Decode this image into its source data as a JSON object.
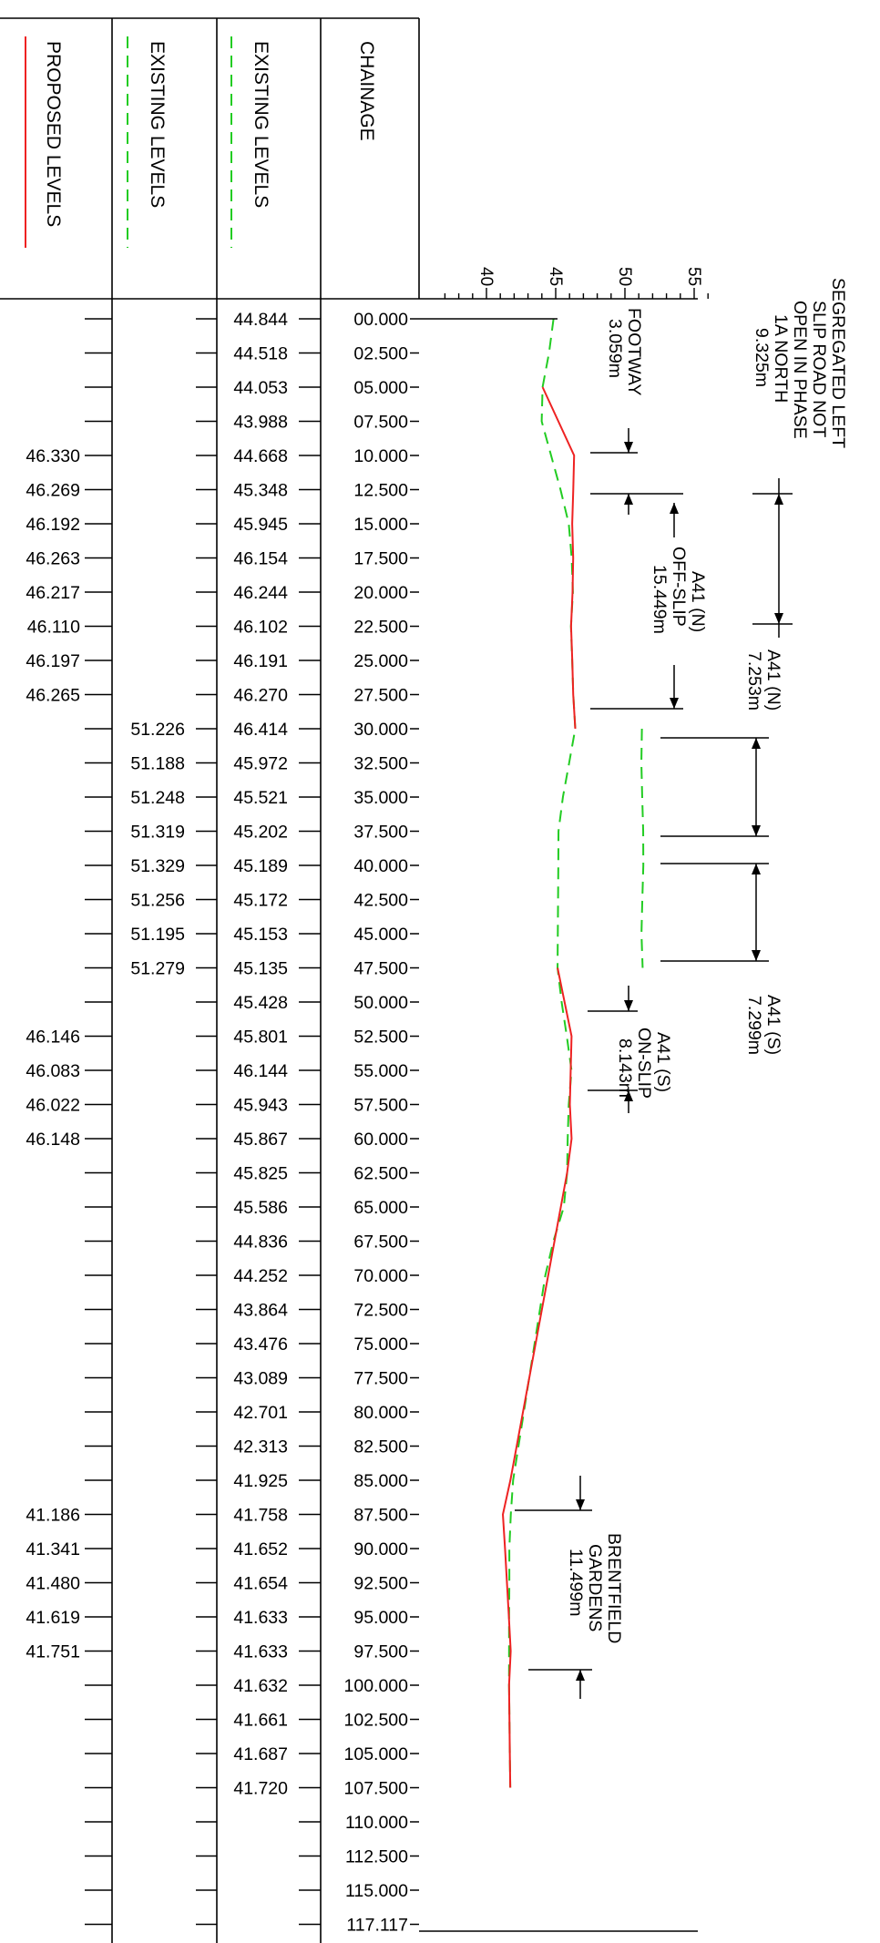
{
  "headers": {
    "proposed": "PROPOSED LEVELS",
    "existing_1": "EXISTING LEVELS",
    "existing_2": "EXISTING LEVELS",
    "chainage": "CHAINAGE"
  },
  "level_scale": {
    "ticks": [
      "40",
      "45",
      "50",
      "55"
    ],
    "min": 36,
    "max": 56
  },
  "rows": [
    {
      "chainage": "00.000",
      "existing_2": "44.844",
      "existing_1": "",
      "proposed": ""
    },
    {
      "chainage": "02.500",
      "existing_2": "44.518",
      "existing_1": "",
      "proposed": ""
    },
    {
      "chainage": "05.000",
      "existing_2": "44.053",
      "existing_1": "",
      "proposed": ""
    },
    {
      "chainage": "07.500",
      "existing_2": "43.988",
      "existing_1": "",
      "proposed": ""
    },
    {
      "chainage": "10.000",
      "existing_2": "44.668",
      "existing_1": "",
      "proposed": "46.330"
    },
    {
      "chainage": "12.500",
      "existing_2": "45.348",
      "existing_1": "",
      "proposed": "46.269"
    },
    {
      "chainage": "15.000",
      "existing_2": "45.945",
      "existing_1": "",
      "proposed": "46.192"
    },
    {
      "chainage": "17.500",
      "existing_2": "46.154",
      "existing_1": "",
      "proposed": "46.263"
    },
    {
      "chainage": "20.000",
      "existing_2": "46.244",
      "existing_1": "",
      "proposed": "46.217"
    },
    {
      "chainage": "22.500",
      "existing_2": "46.102",
      "existing_1": "",
      "proposed": "46.110"
    },
    {
      "chainage": "25.000",
      "existing_2": "46.191",
      "existing_1": "",
      "proposed": "46.197"
    },
    {
      "chainage": "27.500",
      "existing_2": "46.270",
      "existing_1": "",
      "proposed": "46.265"
    },
    {
      "chainage": "30.000",
      "existing_2": "46.414",
      "existing_1": "51.226",
      "proposed": ""
    },
    {
      "chainage": "32.500",
      "existing_2": "45.972",
      "existing_1": "51.188",
      "proposed": ""
    },
    {
      "chainage": "35.000",
      "existing_2": "45.521",
      "existing_1": "51.248",
      "proposed": ""
    },
    {
      "chainage": "37.500",
      "existing_2": "45.202",
      "existing_1": "51.319",
      "proposed": ""
    },
    {
      "chainage": "40.000",
      "existing_2": "45.189",
      "existing_1": "51.329",
      "proposed": ""
    },
    {
      "chainage": "42.500",
      "existing_2": "45.172",
      "existing_1": "51.256",
      "proposed": ""
    },
    {
      "chainage": "45.000",
      "existing_2": "45.153",
      "existing_1": "51.195",
      "proposed": ""
    },
    {
      "chainage": "47.500",
      "existing_2": "45.135",
      "existing_1": "51.279",
      "proposed": ""
    },
    {
      "chainage": "50.000",
      "existing_2": "45.428",
      "existing_1": "",
      "proposed": ""
    },
    {
      "chainage": "52.500",
      "existing_2": "45.801",
      "existing_1": "",
      "proposed": "46.146"
    },
    {
      "chainage": "55.000",
      "existing_2": "46.144",
      "existing_1": "",
      "proposed": "46.083"
    },
    {
      "chainage": "57.500",
      "existing_2": "45.943",
      "existing_1": "",
      "proposed": "46.022"
    },
    {
      "chainage": "60.000",
      "existing_2": "45.867",
      "existing_1": "",
      "proposed": "46.148"
    },
    {
      "chainage": "62.500",
      "existing_2": "45.825",
      "existing_1": "",
      "proposed": ""
    },
    {
      "chainage": "65.000",
      "existing_2": "45.586",
      "existing_1": "",
      "proposed": ""
    },
    {
      "chainage": "67.500",
      "existing_2": "44.836",
      "existing_1": "",
      "proposed": ""
    },
    {
      "chainage": "70.000",
      "existing_2": "44.252",
      "existing_1": "",
      "proposed": ""
    },
    {
      "chainage": "72.500",
      "existing_2": "43.864",
      "existing_1": "",
      "proposed": ""
    },
    {
      "chainage": "75.000",
      "existing_2": "43.476",
      "existing_1": "",
      "proposed": ""
    },
    {
      "chainage": "77.500",
      "existing_2": "43.089",
      "existing_1": "",
      "proposed": ""
    },
    {
      "chainage": "80.000",
      "existing_2": "42.701",
      "existing_1": "",
      "proposed": ""
    },
    {
      "chainage": "82.500",
      "existing_2": "42.313",
      "existing_1": "",
      "proposed": ""
    },
    {
      "chainage": "85.000",
      "existing_2": "41.925",
      "existing_1": "",
      "proposed": ""
    },
    {
      "chainage": "87.500",
      "existing_2": "41.758",
      "existing_1": "",
      "proposed": "41.186"
    },
    {
      "chainage": "90.000",
      "existing_2": "41.652",
      "existing_1": "",
      "proposed": "41.341"
    },
    {
      "chainage": "92.500",
      "existing_2": "41.654",
      "existing_1": "",
      "proposed": "41.480"
    },
    {
      "chainage": "95.000",
      "existing_2": "41.633",
      "existing_1": "",
      "proposed": "41.619"
    },
    {
      "chainage": "97.500",
      "existing_2": "41.633",
      "existing_1": "",
      "proposed": "41.751"
    },
    {
      "chainage": "100.000",
      "existing_2": "41.632",
      "existing_1": "",
      "proposed": ""
    },
    {
      "chainage": "102.500",
      "existing_2": "41.661",
      "existing_1": "",
      "proposed": ""
    },
    {
      "chainage": "105.000",
      "existing_2": "41.687",
      "existing_1": "",
      "proposed": ""
    },
    {
      "chainage": "107.500",
      "existing_2": "41.720",
      "existing_1": "",
      "proposed": ""
    },
    {
      "chainage": "110.000",
      "existing_2": "",
      "existing_1": "",
      "proposed": ""
    },
    {
      "chainage": "112.500",
      "existing_2": "",
      "existing_1": "",
      "proposed": ""
    },
    {
      "chainage": "115.000",
      "existing_2": "",
      "existing_1": "",
      "proposed": ""
    },
    {
      "chainage": "117.117",
      "existing_2": "",
      "existing_1": "",
      "proposed": ""
    }
  ],
  "annotations": {
    "segregated": [
      "SEGREGATED LEFT",
      "SLIP ROAD NOT",
      "OPEN IN PHASE",
      "1A NORTH",
      "9.325m"
    ],
    "footway": [
      "FOOTWAY",
      "3.059m"
    ],
    "a41_n_offslip": [
      "A41 (N)",
      "OFF-SLIP",
      "15.449m"
    ],
    "a41_n": [
      "A41 (N)",
      "7.253m"
    ],
    "a41_s": [
      "A41 (S)",
      "7.299m"
    ],
    "a41_s_onslip": [
      "A41 (S)",
      "ON-SLIP",
      "8.143m"
    ],
    "brentfield": [
      "BRENTFIELD",
      "GARDENS",
      "11.499m"
    ]
  },
  "colors": {
    "proposed": "#ee2222",
    "existing": "#22cc22",
    "line": "#000000"
  },
  "icons": {
    "proposed_legend": "red-solid-line",
    "existing_legend": "green-dashed-line"
  }
}
